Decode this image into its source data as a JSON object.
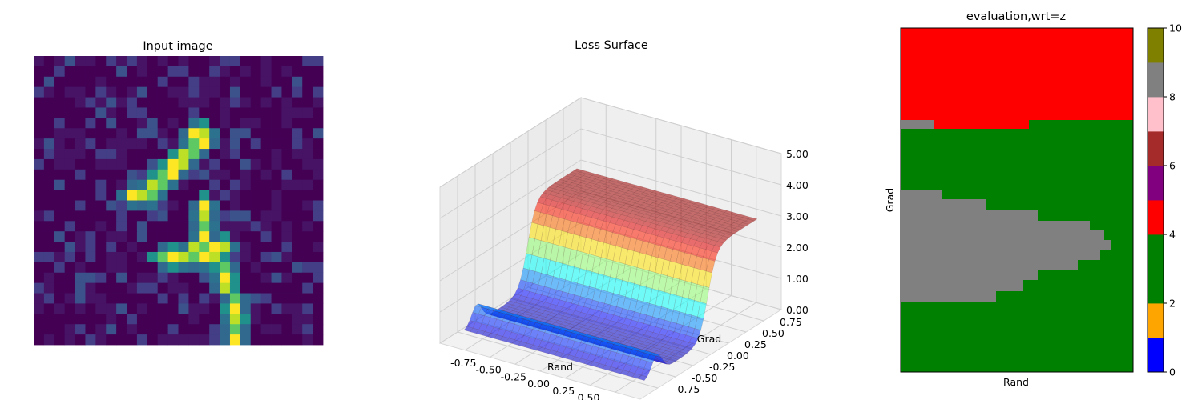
{
  "chart_data": [
    {
      "type": "heatmap",
      "title": "Input image",
      "grid_size": 28,
      "colormap": "viridis",
      "bright_trail": [
        [
          7,
          15
        ],
        [
          7,
          16
        ],
        [
          8,
          15
        ],
        [
          8,
          16
        ],
        [
          9,
          14
        ],
        [
          9,
          15
        ],
        [
          10,
          13
        ],
        [
          10,
          14
        ],
        [
          11,
          12
        ],
        [
          11,
          13
        ],
        [
          12,
          11
        ],
        [
          12,
          12
        ],
        [
          13,
          9
        ],
        [
          13,
          10
        ],
        [
          13,
          11
        ],
        [
          14,
          16
        ],
        [
          15,
          16
        ],
        [
          16,
          16
        ],
        [
          17,
          16
        ],
        [
          18,
          15
        ],
        [
          18,
          16
        ],
        [
          18,
          17
        ],
        [
          18,
          18
        ],
        [
          19,
          12
        ],
        [
          19,
          13
        ],
        [
          19,
          14
        ],
        [
          19,
          15
        ],
        [
          19,
          16
        ],
        [
          19,
          17
        ],
        [
          20,
          18
        ],
        [
          21,
          18
        ],
        [
          22,
          18
        ],
        [
          23,
          19
        ],
        [
          24,
          19
        ],
        [
          25,
          19
        ],
        [
          26,
          19
        ],
        [
          27,
          19
        ]
      ]
    },
    {
      "type": "surface",
      "title": "Loss Surface",
      "xlabel": "Rand",
      "ylabel": "Grad",
      "x_ticks": [
        "-0.75",
        "-0.50",
        "-0.25",
        "0.00",
        "0.25",
        "0.50",
        "0.75"
      ],
      "y_ticks": [
        "-0.75",
        "-0.50",
        "-0.25",
        "0.00",
        "0.25",
        "0.50",
        "0.75"
      ],
      "z_ticks": [
        "0.00",
        "1.00",
        "2.00",
        "3.00",
        "4.00",
        "5.00"
      ],
      "zlim": [
        0,
        5
      ],
      "colormap": "jet",
      "shape": "valley along Grad: low near Grad ~ -0.3, ridge near Grad ~ 0.1 to 0.3, plateau about 3 at Grad 0.75"
    },
    {
      "type": "heatmap",
      "title": "evaluation,wrt=z",
      "xlabel": "Rand",
      "ylabel": "Grad",
      "colorbar": {
        "ticks": [
          "0",
          "2",
          "4",
          "6",
          "8",
          "10"
        ],
        "min": 0,
        "max": 10,
        "colors": [
          "#0000ff",
          "#ffa500",
          "#008000",
          "#008000",
          "#ff0000",
          "#800080",
          "#a52a2a",
          "#ffc0cb",
          "#808080",
          "#808000",
          "#00ffff"
        ],
        "bounds": [
          0,
          1,
          2,
          3,
          4,
          5,
          6,
          7,
          8,
          9,
          10
        ]
      },
      "regions": [
        {
          "class": 4,
          "color": "#ff0000",
          "description": "top band"
        },
        {
          "class": 3,
          "color": "#008000",
          "description": "middle and bottom"
        },
        {
          "class": 8,
          "color": "#808080",
          "description": "left wedge and small strip"
        }
      ]
    }
  ]
}
